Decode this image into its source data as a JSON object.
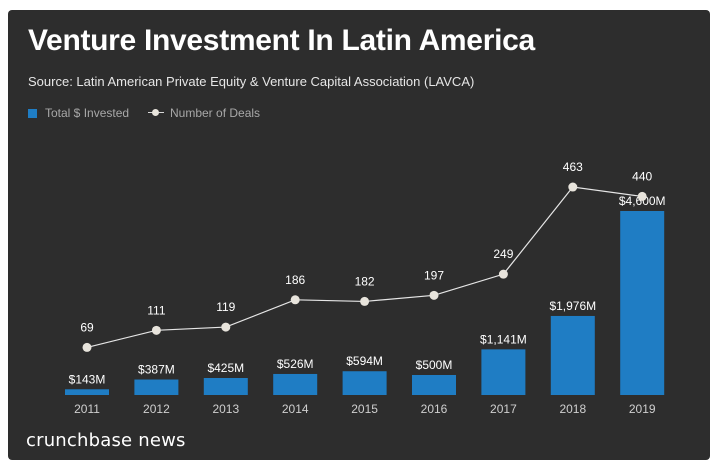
{
  "title": "Venture Investment In Latin America",
  "source": "Source: Latin American Private Equity & Venture Capital Association (LAVCA)",
  "brand": "crunchbase news",
  "legend": {
    "invested_label": "Total $ Invested",
    "deals_label": "Number of Deals"
  },
  "colors": {
    "background": "#2d2d2d",
    "bar": "#1f7dc4",
    "line": "#e6e6e6",
    "marker": "#e8e4dc"
  },
  "chart_data": {
    "type": "bar",
    "categories": [
      "2011",
      "2012",
      "2013",
      "2014",
      "2015",
      "2016",
      "2017",
      "2018",
      "2019"
    ],
    "series": [
      {
        "name": "Total $ Invested",
        "type": "bar",
        "unit": "$M",
        "values": [
          143,
          387,
          425,
          526,
          594,
          500,
          1141,
          1976,
          4600
        ],
        "labels": [
          "$143M",
          "$387M",
          "$425M",
          "$526M",
          "$594M",
          "$500M",
          "$1,141M",
          "$1,976M",
          "$4,600M"
        ]
      },
      {
        "name": "Number of Deals",
        "type": "line",
        "values": [
          69,
          111,
          119,
          186,
          182,
          197,
          249,
          463,
          440
        ]
      }
    ],
    "grid": false,
    "legend_position": "top-left"
  }
}
